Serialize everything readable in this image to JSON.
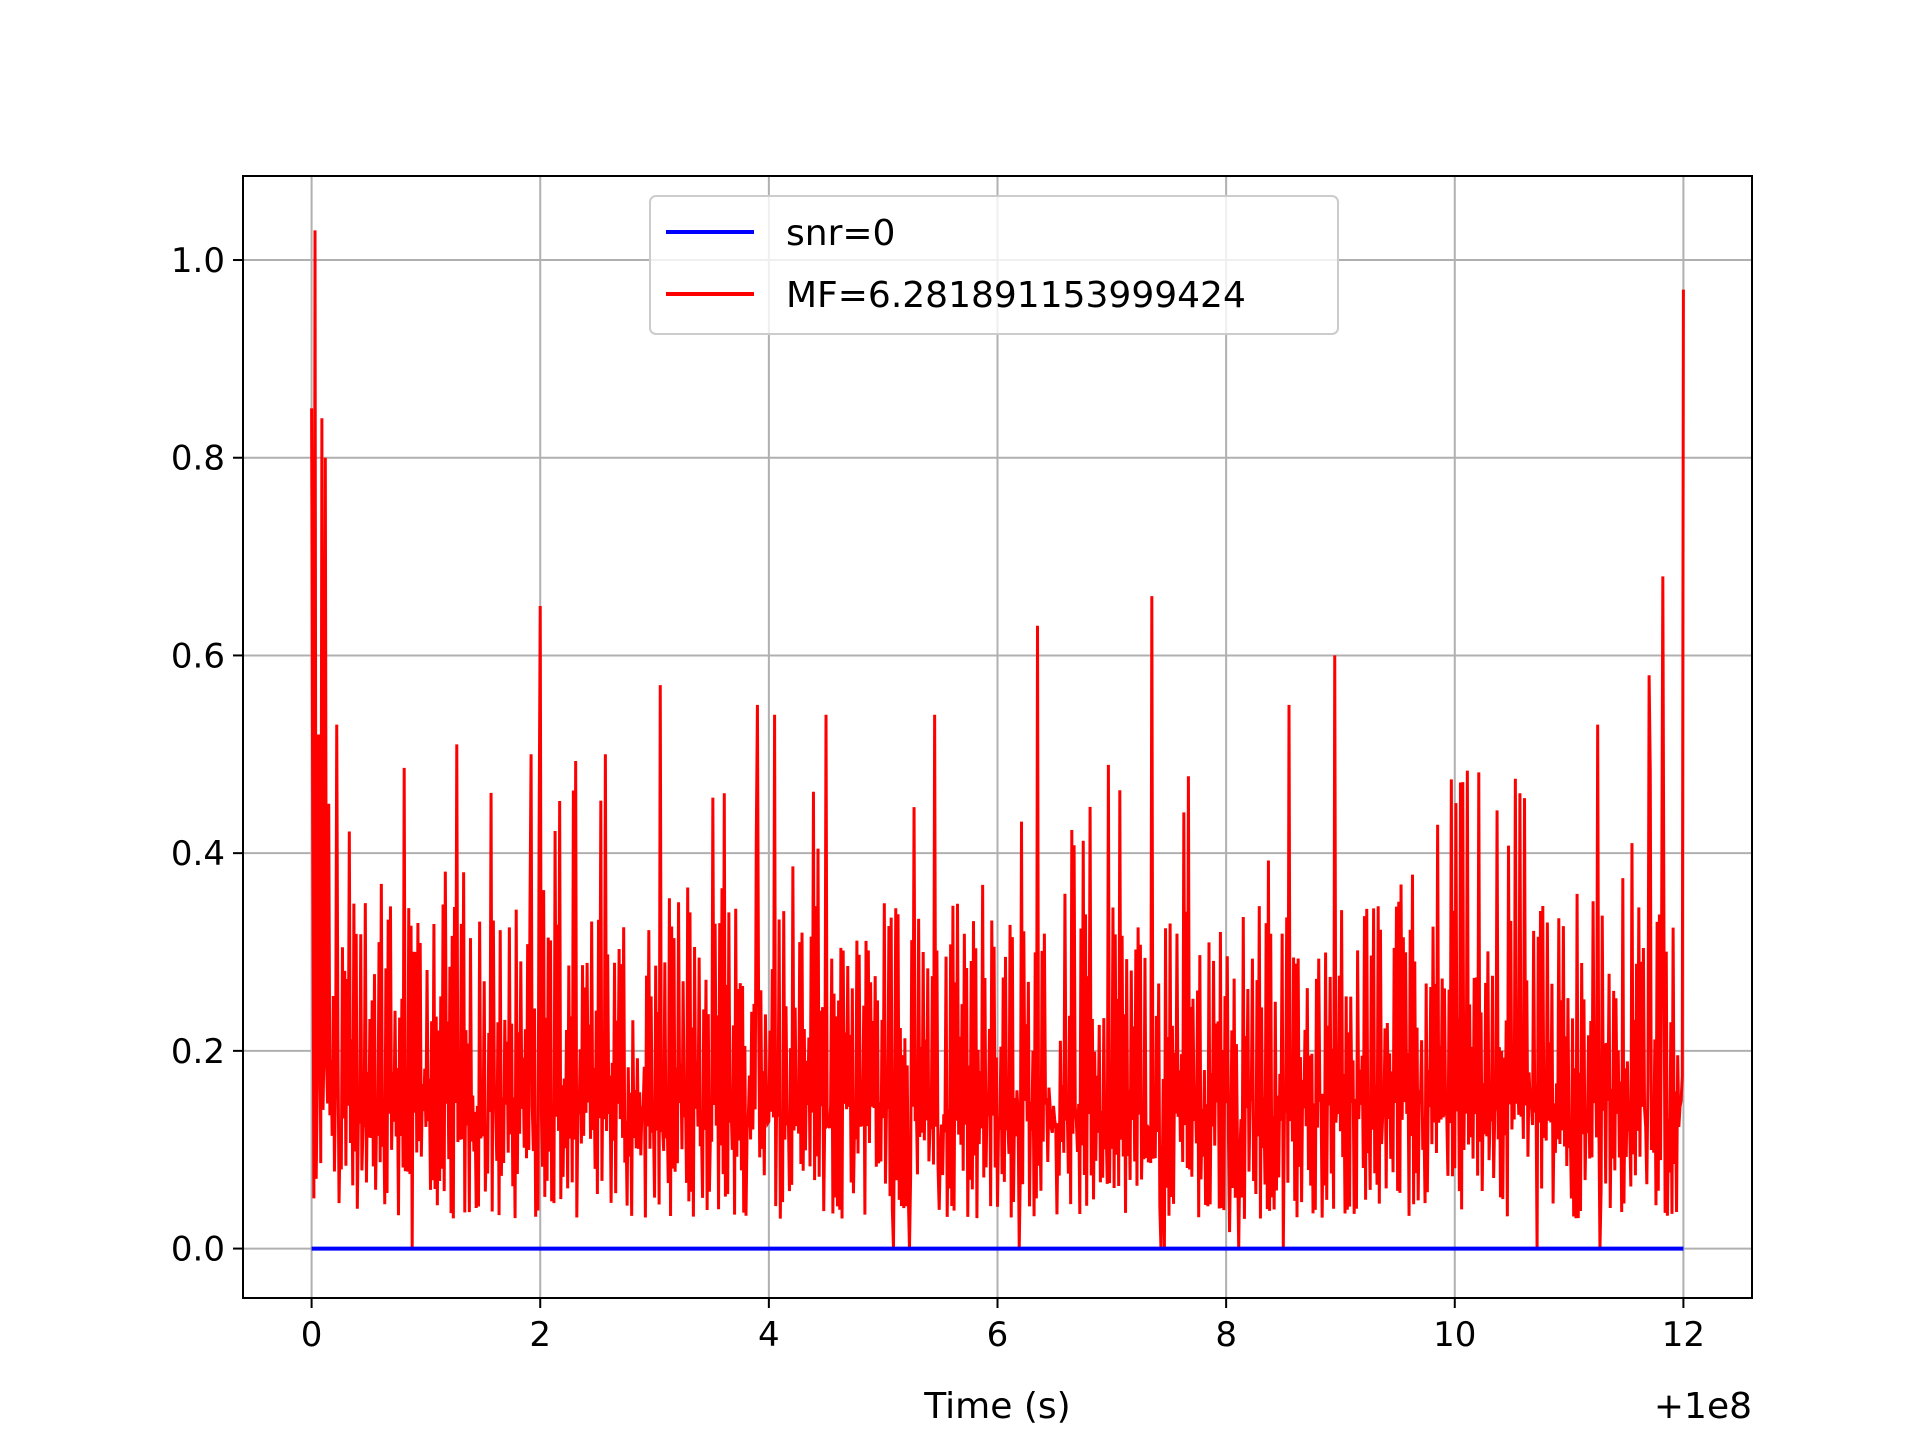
{
  "chart_data": {
    "type": "line",
    "title": "",
    "xlabel": "Time (s)",
    "ylabel": "",
    "x_offset_label": "+1e8",
    "xlim": [
      -0.6,
      12.6
    ],
    "ylim": [
      -0.05,
      1.085
    ],
    "grid": true,
    "legend_position": "top-center",
    "x_ticks": [
      0,
      2,
      4,
      6,
      8,
      10,
      12
    ],
    "x_tick_labels": [
      "0",
      "2",
      "4",
      "6",
      "8",
      "10",
      "12"
    ],
    "y_ticks": [
      0.0,
      0.2,
      0.4,
      0.6,
      0.8,
      1.0
    ],
    "y_tick_labels": [
      "0.0",
      "0.2",
      "0.4",
      "0.6",
      "0.8",
      "1.0"
    ],
    "series": [
      {
        "name": "snr=0",
        "color": "#0000ff",
        "x": [
          0,
          12
        ],
        "y": [
          0.0,
          0.0
        ]
      },
      {
        "name": "MF=6.281891153999424",
        "color": "#ff0000",
        "x_range": [
          0,
          12
        ],
        "points": 1200,
        "baseline_min": 0.03,
        "typical_max": 0.35,
        "peaks": [
          {
            "x": 0.0,
            "y": 0.85
          },
          {
            "x": 0.03,
            "y": 1.03
          },
          {
            "x": 0.06,
            "y": 0.52
          },
          {
            "x": 0.09,
            "y": 0.84
          },
          {
            "x": 0.12,
            "y": 0.8
          },
          {
            "x": 0.15,
            "y": 0.45
          },
          {
            "x": 0.22,
            "y": 0.53
          },
          {
            "x": 1.27,
            "y": 0.51
          },
          {
            "x": 1.92,
            "y": 0.5
          },
          {
            "x": 2.0,
            "y": 0.65
          },
          {
            "x": 2.57,
            "y": 0.5
          },
          {
            "x": 3.05,
            "y": 0.57
          },
          {
            "x": 3.9,
            "y": 0.55
          },
          {
            "x": 4.05,
            "y": 0.54
          },
          {
            "x": 4.5,
            "y": 0.54
          },
          {
            "x": 5.45,
            "y": 0.54
          },
          {
            "x": 6.35,
            "y": 0.63
          },
          {
            "x": 7.35,
            "y": 0.66
          },
          {
            "x": 8.55,
            "y": 0.55
          },
          {
            "x": 8.95,
            "y": 0.6
          },
          {
            "x": 11.25,
            "y": 0.53
          },
          {
            "x": 11.7,
            "y": 0.58
          },
          {
            "x": 11.82,
            "y": 0.68
          },
          {
            "x": 12.0,
            "y": 0.97
          }
        ]
      }
    ]
  }
}
